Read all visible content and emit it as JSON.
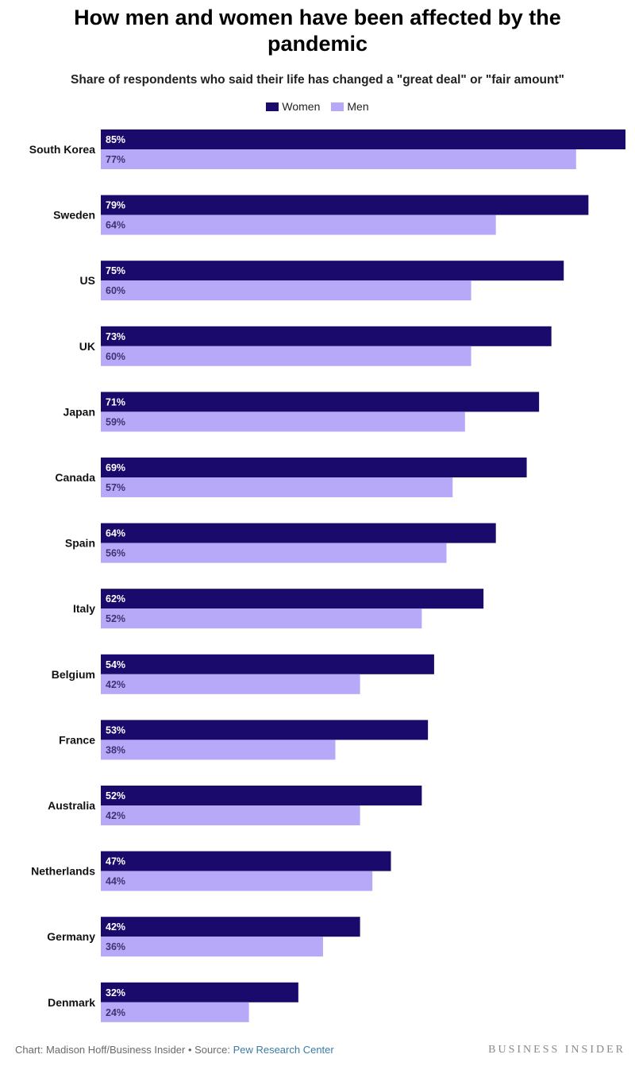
{
  "chart_data": {
    "type": "bar",
    "orientation": "horizontal",
    "title": "How men and women have been affected by the pandemic",
    "subtitle": "Share of respondents who said their life has changed a \"great deal\" or \"fair amount\"",
    "categories": [
      "South Korea",
      "Sweden",
      "US",
      "UK",
      "Japan",
      "Canada",
      "Spain",
      "Italy",
      "Belgium",
      "France",
      "Australia",
      "Netherlands",
      "Germany",
      "Denmark"
    ],
    "series": [
      {
        "name": "Women",
        "color": "#1a0a6b",
        "values": [
          85,
          79,
          75,
          73,
          71,
          69,
          64,
          62,
          54,
          53,
          52,
          47,
          42,
          32
        ]
      },
      {
        "name": "Men",
        "color": "#b8a8f8",
        "values": [
          77,
          64,
          60,
          60,
          59,
          57,
          56,
          52,
          42,
          38,
          42,
          44,
          36,
          24
        ]
      }
    ],
    "value_suffix": "%",
    "xlim": [
      0,
      85
    ],
    "grid": false,
    "legend_position": "top-center"
  },
  "footer": {
    "credit": "Chart: Madison Hoff/Business Insider • Source: ",
    "source_link": "Pew Research Center",
    "brand": "BUSINESS INSIDER"
  }
}
